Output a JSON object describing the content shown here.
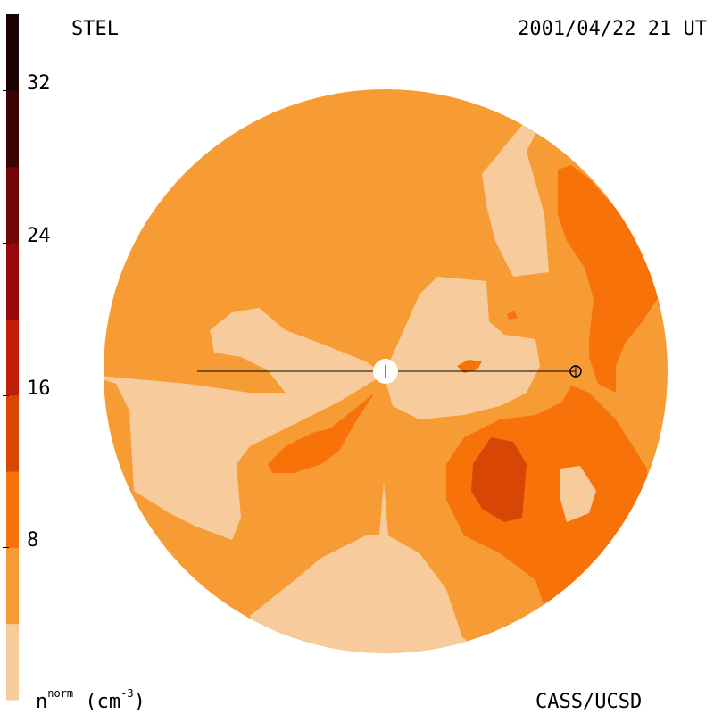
{
  "header": {
    "left_label": "STEL",
    "right_label": "2001/04/22 21 UT"
  },
  "footer": {
    "unit_base": "n",
    "unit_sup": "norm",
    "unit_paren_open": "(cm",
    "unit_paren_sup": "-3",
    "unit_paren_close": ")",
    "credit": "CASS/UCSD"
  },
  "colorbar": {
    "ticks": [
      {
        "label": "32",
        "value": 32
      },
      {
        "label": "24",
        "value": 24
      },
      {
        "label": "16",
        "value": 16
      },
      {
        "label": "8",
        "value": 8
      }
    ],
    "range": [
      0,
      36
    ],
    "bands": [
      {
        "from": 0,
        "to": 4,
        "color": "#f7cb9b"
      },
      {
        "from": 4,
        "to": 8,
        "color": "#f79b35"
      },
      {
        "from": 8,
        "to": 12,
        "color": "#f77209"
      },
      {
        "from": 12,
        "to": 16,
        "color": "#d84605"
      },
      {
        "from": 16,
        "to": 20,
        "color": "#c01e0b"
      },
      {
        "from": 20,
        "to": 24,
        "color": "#98080a"
      },
      {
        "from": 24,
        "to": 28,
        "color": "#6f0505"
      },
      {
        "from": 28,
        "to": 32,
        "color": "#3c0303"
      },
      {
        "from": 32,
        "to": 36,
        "color": "#1a0202"
      }
    ]
  },
  "map": {
    "colors": {
      "pale": "#f7cb9b",
      "light": "#f79b35",
      "mid": "#f77209",
      "dark": "#d84605"
    },
    "markers": [
      "sun-marker",
      "earth-marker"
    ]
  }
}
